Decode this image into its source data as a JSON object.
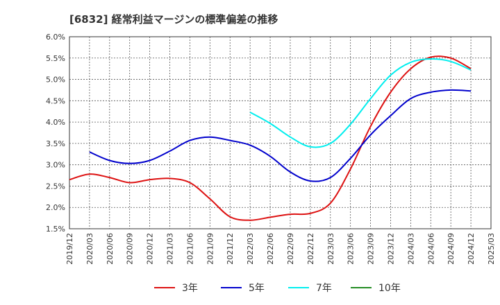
{
  "chart_data": {
    "type": "line",
    "title": "[6832]  経常利益マージンの標準偏差の推移",
    "xlabel": "",
    "ylabel": "",
    "x_ticks": [
      "2019/12",
      "2020/03",
      "2020/06",
      "2020/09",
      "2020/12",
      "2021/03",
      "2021/06",
      "2021/09",
      "2021/12",
      "2022/03",
      "2022/06",
      "2022/09",
      "2022/12",
      "2023/03",
      "2023/06",
      "2023/09",
      "2023/12",
      "2024/03",
      "2024/06",
      "2024/09",
      "2024/12",
      "2025/03"
    ],
    "y_ticks": [
      "1.5%",
      "2.0%",
      "2.5%",
      "3.0%",
      "3.5%",
      "4.0%",
      "4.5%",
      "5.0%",
      "5.5%",
      "6.0%"
    ],
    "ylim": [
      1.5,
      6.0
    ],
    "grid": true,
    "legend_position": "bottom",
    "series": [
      {
        "name": "3年",
        "color": "#dd1111",
        "x": [
          "2019/12",
          "2020/03",
          "2020/06",
          "2020/09",
          "2020/12",
          "2021/03",
          "2021/06",
          "2021/09",
          "2021/12",
          "2022/03",
          "2022/06",
          "2022/09",
          "2022/12",
          "2023/03",
          "2023/06",
          "2023/09",
          "2023/12",
          "2024/03",
          "2024/06",
          "2024/09",
          "2024/12"
        ],
        "values": [
          2.65,
          2.78,
          2.7,
          2.58,
          2.65,
          2.68,
          2.58,
          2.2,
          1.78,
          1.7,
          1.77,
          1.84,
          1.86,
          2.1,
          2.9,
          3.9,
          4.7,
          5.25,
          5.52,
          5.5,
          5.25
        ]
      },
      {
        "name": "5年",
        "color": "#0000cc",
        "x": [
          "2020/03",
          "2020/06",
          "2020/09",
          "2020/12",
          "2021/03",
          "2021/06",
          "2021/09",
          "2021/12",
          "2022/03",
          "2022/06",
          "2022/09",
          "2022/12",
          "2023/03",
          "2023/06",
          "2023/09",
          "2023/12",
          "2024/03",
          "2024/06",
          "2024/09",
          "2024/12"
        ],
        "values": [
          3.3,
          3.1,
          3.03,
          3.1,
          3.32,
          3.57,
          3.65,
          3.57,
          3.46,
          3.2,
          2.83,
          2.62,
          2.7,
          3.15,
          3.7,
          4.15,
          4.55,
          4.7,
          4.75,
          4.73
        ]
      },
      {
        "name": "7年",
        "color": "#00eeee",
        "x": [
          "2022/03",
          "2022/06",
          "2022/09",
          "2022/12",
          "2023/03",
          "2023/06",
          "2023/09",
          "2023/12",
          "2024/03",
          "2024/06",
          "2024/09",
          "2024/12"
        ],
        "values": [
          4.23,
          3.97,
          3.65,
          3.42,
          3.5,
          3.95,
          4.55,
          5.1,
          5.4,
          5.48,
          5.42,
          5.22
        ]
      },
      {
        "name": "10年",
        "color": "#228B22",
        "x": [],
        "values": []
      }
    ]
  }
}
